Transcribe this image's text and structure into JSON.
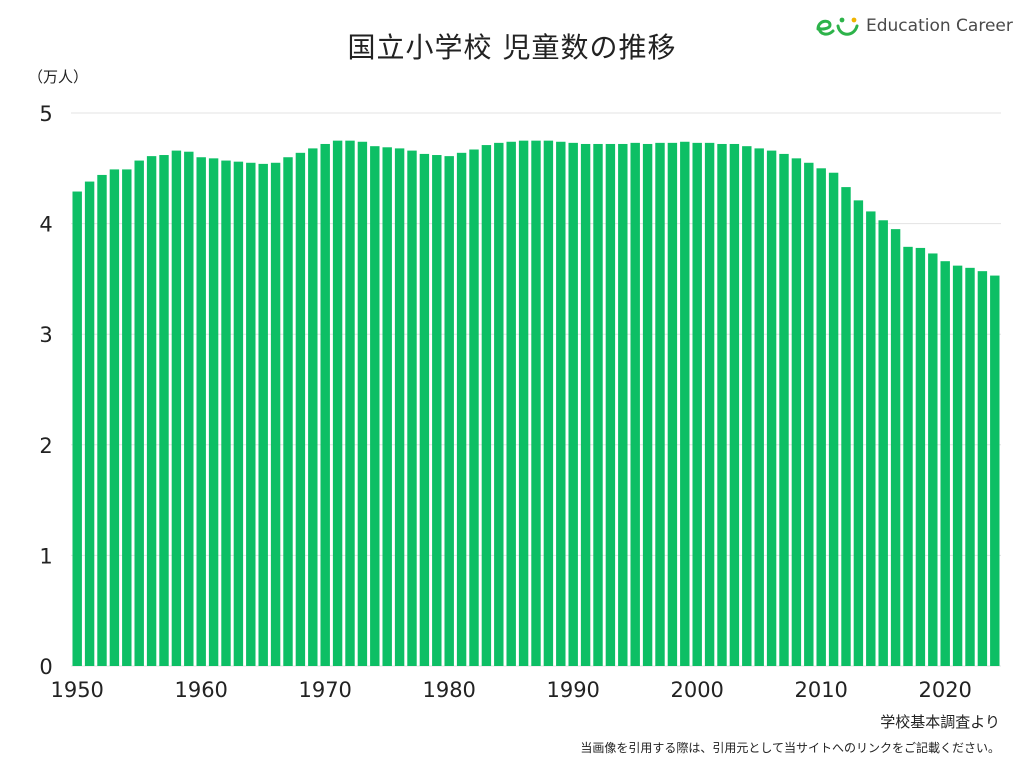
{
  "chart_data": {
    "type": "bar",
    "title": "国立小学校 児童数の推移",
    "ylabel": "（万人）",
    "xlabel": "",
    "ylim": [
      0,
      5
    ],
    "yticks": [
      "0",
      "1",
      "2",
      "3",
      "4",
      "5"
    ],
    "xticks": [
      "1950",
      "1960",
      "1970",
      "1980",
      "1990",
      "2000",
      "2010",
      "2020"
    ],
    "grid": true,
    "legend": "none",
    "bar_color": "#0dbf65",
    "categories": [
      1950,
      1951,
      1952,
      1953,
      1954,
      1955,
      1956,
      1957,
      1958,
      1959,
      1960,
      1961,
      1962,
      1963,
      1964,
      1965,
      1966,
      1967,
      1968,
      1969,
      1970,
      1971,
      1972,
      1973,
      1974,
      1975,
      1976,
      1977,
      1978,
      1979,
      1980,
      1981,
      1982,
      1983,
      1984,
      1985,
      1986,
      1987,
      1988,
      1989,
      1990,
      1991,
      1992,
      1993,
      1994,
      1995,
      1996,
      1997,
      1998,
      1999,
      2000,
      2001,
      2002,
      2003,
      2004,
      2005,
      2006,
      2007,
      2008,
      2009,
      2010,
      2011,
      2012,
      2013,
      2014,
      2015,
      2016,
      2017,
      2018,
      2019,
      2020,
      2021,
      2022,
      2023,
      2024
    ],
    "values": [
      4.29,
      4.38,
      4.44,
      4.49,
      4.49,
      4.57,
      4.61,
      4.62,
      4.66,
      4.65,
      4.6,
      4.59,
      4.57,
      4.56,
      4.55,
      4.54,
      4.55,
      4.6,
      4.64,
      4.68,
      4.72,
      4.75,
      4.75,
      4.74,
      4.7,
      4.69,
      4.68,
      4.66,
      4.63,
      4.62,
      4.61,
      4.64,
      4.67,
      4.71,
      4.73,
      4.74,
      4.75,
      4.75,
      4.75,
      4.74,
      4.73,
      4.72,
      4.72,
      4.72,
      4.72,
      4.73,
      4.72,
      4.73,
      4.73,
      4.74,
      4.73,
      4.73,
      4.72,
      4.72,
      4.7,
      4.68,
      4.66,
      4.63,
      4.59,
      4.55,
      4.5,
      4.46,
      4.33,
      4.21,
      4.11,
      4.03,
      3.95,
      3.79,
      3.78,
      3.73,
      3.66,
      3.62,
      3.6,
      3.57,
      3.53
    ]
  },
  "logo": {
    "text": "Education Career",
    "mark_color": "#2db34a"
  },
  "footer": {
    "source": "学校基本調査より",
    "citation": "当画像を引用する際は、引用元として当サイトへのリンクをご記載ください。"
  }
}
